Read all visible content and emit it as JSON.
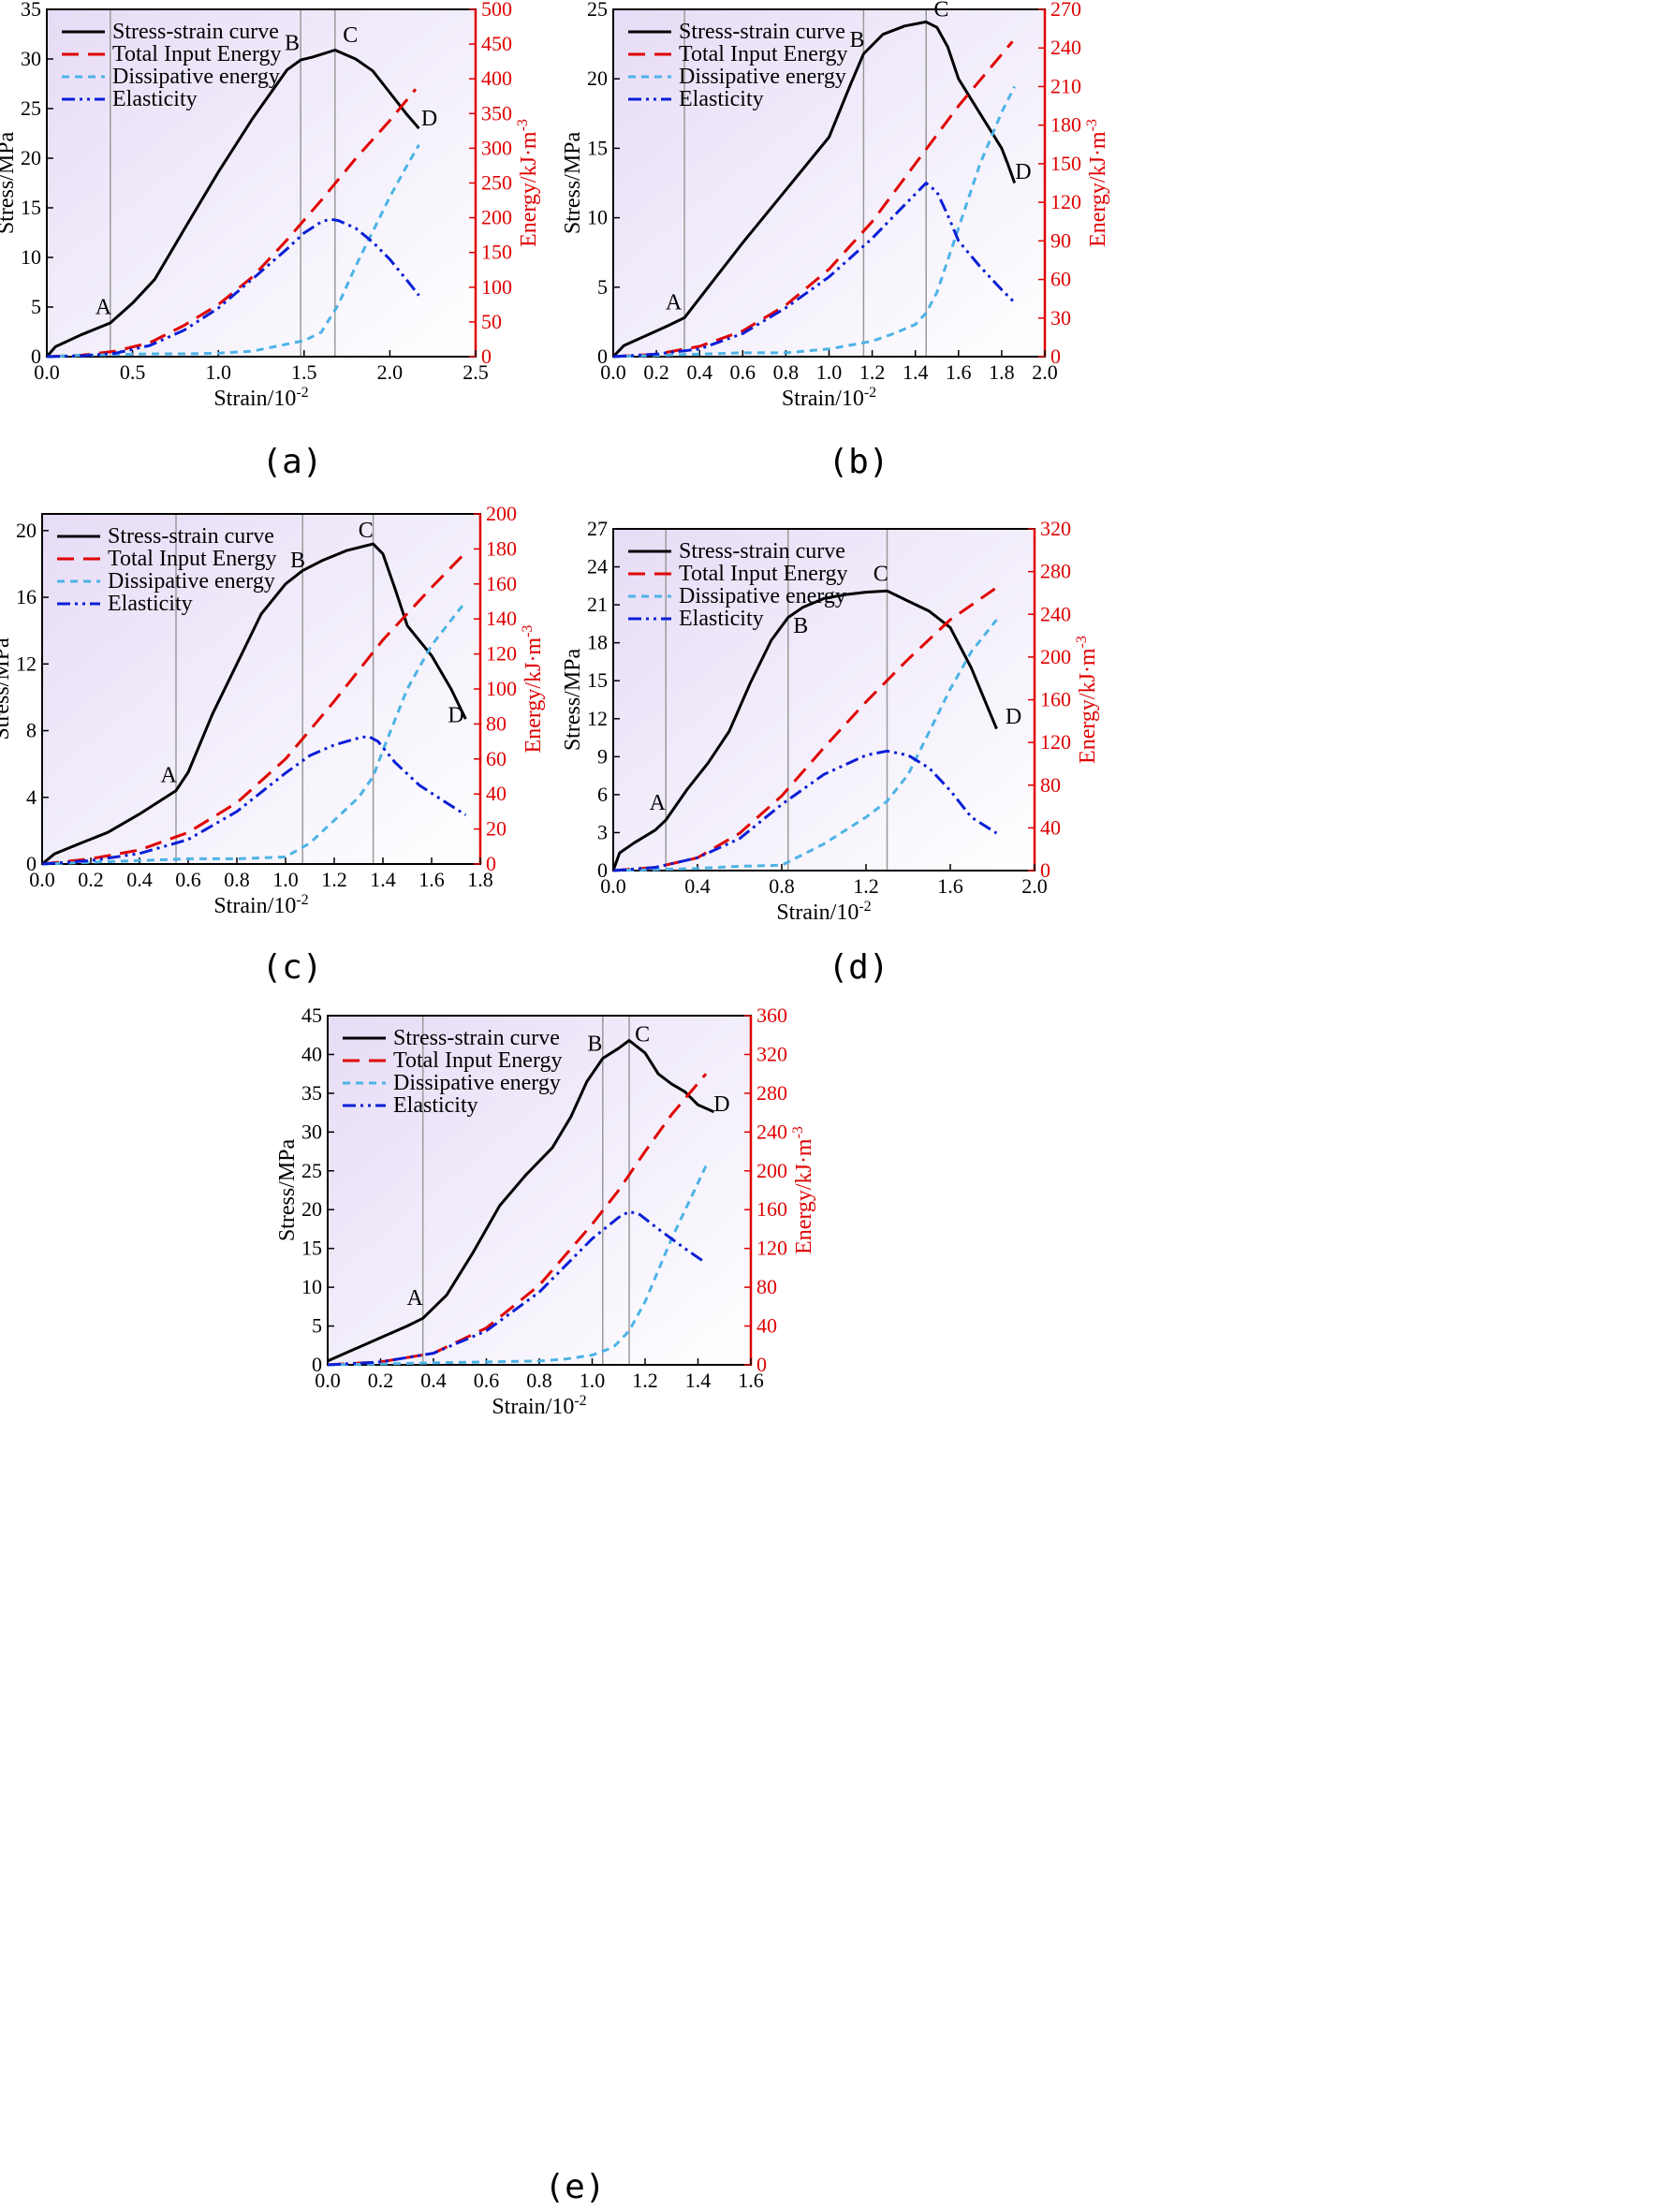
{
  "colors": {
    "stress": "#000000",
    "total": "#e00000",
    "dissipative": "#4db3e6",
    "elastic": "#0a1fd6",
    "right_axis": "#e00000",
    "marker_line": "#9a9a9a",
    "bg_top_left": "#e6dcf6",
    "bg_bottom_right": "#ffffff"
  },
  "legend_labels": [
    "Stress-strain curve",
    "Total Input Energy",
    "Dissipative energy",
    "Elasticity"
  ],
  "xlabel": "Strain/10",
  "xlabel_exp": "-2",
  "ylabel": "Stress/MPa",
  "y2label": "Energy/kJ·m",
  "y2label_exp": "-3",
  "chart_data": [
    {
      "caption": "(a)",
      "type": "line",
      "xlim": [
        0,
        2.5
      ],
      "xticks": [
        "0.0",
        "0.5",
        "1.0",
        "1.5",
        "2.0",
        "2.5"
      ],
      "ylim": [
        0,
        35
      ],
      "yticks": [
        "0",
        "5",
        "10",
        "15",
        "20",
        "25",
        "30",
        "35"
      ],
      "y2lim": [
        0,
        500
      ],
      "y2ticks": [
        "0",
        "50",
        "100",
        "150",
        "200",
        "250",
        "300",
        "350",
        "400",
        "450",
        "500"
      ],
      "vlines": [
        0.37,
        1.48,
        1.68
      ],
      "points": [
        {
          "label": "A",
          "x": 0.33,
          "y": 4.3
        },
        {
          "label": "B",
          "x": 1.43,
          "y": 30.9
        },
        {
          "label": "C",
          "x": 1.77,
          "y": 31.7
        },
        {
          "label": "D",
          "x": 2.23,
          "y": 23.3
        }
      ],
      "series": [
        {
          "name": "Stress-strain curve",
          "axis": "left",
          "x": [
            0,
            0.05,
            0.2,
            0.37,
            0.5,
            0.63,
            0.8,
            1.0,
            1.2,
            1.4,
            1.48,
            1.55,
            1.68,
            1.8,
            1.9,
            2.0,
            2.1,
            2.17
          ],
          "y": [
            0,
            1.0,
            2.2,
            3.4,
            5.4,
            7.8,
            12.8,
            18.6,
            24.0,
            28.9,
            29.9,
            30.2,
            30.9,
            30.0,
            28.8,
            26.6,
            24.4,
            23.0
          ]
        },
        {
          "name": "Total Input Energy",
          "axis": "right",
          "x": [
            0,
            0.2,
            0.4,
            0.6,
            0.8,
            1.0,
            1.2,
            1.4,
            1.6,
            1.8,
            2.0,
            2.15
          ],
          "y": [
            0,
            2,
            8,
            20,
            45,
            75,
            115,
            168,
            225,
            285,
            340,
            385
          ]
        },
        {
          "name": "Dissipative energy",
          "axis": "right",
          "x": [
            0,
            0.2,
            0.4,
            0.6,
            0.8,
            1.0,
            1.2,
            1.4,
            1.5,
            1.6,
            1.7,
            1.8,
            1.9,
            2.0,
            2.1,
            2.17
          ],
          "y": [
            0,
            2,
            3,
            4,
            4,
            5,
            8,
            18,
            23,
            35,
            75,
            130,
            180,
            230,
            275,
            305
          ]
        },
        {
          "name": "Elasticity",
          "axis": "right",
          "x": [
            0,
            0.2,
            0.4,
            0.6,
            0.8,
            1.0,
            1.2,
            1.4,
            1.5,
            1.6,
            1.65,
            1.7,
            1.8,
            1.9,
            2.0,
            2.1,
            2.17
          ],
          "y": [
            0,
            1,
            5,
            16,
            38,
            70,
            112,
            155,
            178,
            194,
            198,
            196,
            185,
            165,
            140,
            110,
            88
          ]
        }
      ]
    },
    {
      "caption": "(b)",
      "type": "line",
      "xlim": [
        0,
        2.0
      ],
      "xticks": [
        "0.0",
        "0.2",
        "0.4",
        "0.6",
        "0.8",
        "1.0",
        "1.2",
        "1.4",
        "1.6",
        "1.8",
        "2.0"
      ],
      "ylim": [
        0,
        25
      ],
      "yticks": [
        "0",
        "5",
        "10",
        "15",
        "20",
        "25"
      ],
      "y2lim": [
        0,
        270
      ],
      "y2ticks": [
        "0",
        "30",
        "60",
        "90",
        "120",
        "150",
        "180",
        "210",
        "240",
        "270"
      ],
      "vlines": [
        0.33,
        1.16,
        1.45
      ],
      "points": [
        {
          "label": "A",
          "x": 0.28,
          "y": 3.4
        },
        {
          "label": "B",
          "x": 1.13,
          "y": 22.3
        },
        {
          "label": "C",
          "x": 1.52,
          "y": 24.5
        },
        {
          "label": "D",
          "x": 1.9,
          "y": 12.8
        }
      ],
      "series": [
        {
          "name": "Stress-strain curve",
          "axis": "left",
          "x": [
            0,
            0.05,
            0.15,
            0.25,
            0.33,
            0.45,
            0.6,
            0.8,
            1.0,
            1.1,
            1.16,
            1.25,
            1.35,
            1.45,
            1.5,
            1.55,
            1.6,
            1.7,
            1.8,
            1.83,
            1.86
          ],
          "y": [
            0,
            0.8,
            1.5,
            2.2,
            2.8,
            5.2,
            8.2,
            12.0,
            15.8,
            19.6,
            21.8,
            23.2,
            23.8,
            24.1,
            23.7,
            22.3,
            20.0,
            17.5,
            15.0,
            13.8,
            12.5
          ]
        },
        {
          "name": "Total Input Energy",
          "axis": "right",
          "x": [
            0,
            0.2,
            0.4,
            0.6,
            0.8,
            1.0,
            1.2,
            1.4,
            1.6,
            1.85
          ],
          "y": [
            0,
            2,
            8,
            20,
            40,
            68,
            105,
            150,
            195,
            245
          ]
        },
        {
          "name": "Dissipative energy",
          "axis": "right",
          "x": [
            0,
            0.2,
            0.4,
            0.6,
            0.8,
            1.0,
            1.2,
            1.3,
            1.4,
            1.45,
            1.5,
            1.6,
            1.7,
            1.8,
            1.86
          ],
          "y": [
            0,
            1,
            2,
            3,
            3,
            6,
            12,
            18,
            25,
            34,
            50,
            100,
            150,
            190,
            210
          ]
        },
        {
          "name": "Elasticity",
          "axis": "right",
          "x": [
            0,
            0.2,
            0.4,
            0.6,
            0.8,
            1.0,
            1.2,
            1.35,
            1.45,
            1.5,
            1.55,
            1.6,
            1.7,
            1.8,
            1.86
          ],
          "y": [
            0,
            2,
            6,
            18,
            38,
            62,
            92,
            118,
            135,
            128,
            110,
            90,
            70,
            52,
            42
          ]
        }
      ]
    },
    {
      "caption": "(c)",
      "type": "line",
      "xlim": [
        0,
        1.8
      ],
      "xticks": [
        "0.0",
        "0.2",
        "0.4",
        "0.6",
        "0.8",
        "1.0",
        "1.2",
        "1.4",
        "1.6",
        "1.8"
      ],
      "ylim": [
        0,
        21
      ],
      "yticks": [
        "0",
        "4",
        "8",
        "12",
        "16",
        "20"
      ],
      "y2lim": [
        0,
        200
      ],
      "y2ticks": [
        "0",
        "20",
        "40",
        "60",
        "80",
        "100",
        "120",
        "140",
        "160",
        "180",
        "200"
      ],
      "vlines": [
        0.55,
        1.07,
        1.36
      ],
      "points": [
        {
          "label": "A",
          "x": 0.52,
          "y": 4.9
        },
        {
          "label": "B",
          "x": 1.05,
          "y": 17.8
        },
        {
          "label": "C",
          "x": 1.33,
          "y": 19.6
        },
        {
          "label": "D",
          "x": 1.7,
          "y": 8.5
        }
      ],
      "series": [
        {
          "name": "Stress-strain curve",
          "axis": "left",
          "x": [
            0,
            0.05,
            0.15,
            0.27,
            0.4,
            0.55,
            0.6,
            0.7,
            0.8,
            0.9,
            1.0,
            1.07,
            1.15,
            1.25,
            1.36,
            1.4,
            1.45,
            1.5,
            1.6,
            1.68,
            1.74
          ],
          "y": [
            0,
            0.6,
            1.2,
            1.9,
            3.0,
            4.4,
            5.5,
            9.0,
            12.0,
            15.0,
            16.8,
            17.6,
            18.2,
            18.8,
            19.2,
            18.6,
            16.5,
            14.3,
            12.5,
            10.5,
            8.7
          ]
        },
        {
          "name": "Total Input Energy",
          "axis": "right",
          "x": [
            0,
            0.2,
            0.4,
            0.6,
            0.8,
            1.0,
            1.2,
            1.4,
            1.6,
            1.74
          ],
          "y": [
            0,
            3,
            8,
            18,
            35,
            60,
            93,
            128,
            158,
            178
          ]
        },
        {
          "name": "Dissipative energy",
          "axis": "right",
          "x": [
            0,
            0.2,
            0.4,
            0.6,
            0.8,
            1.0,
            1.1,
            1.2,
            1.3,
            1.36,
            1.4,
            1.5,
            1.6,
            1.74
          ],
          "y": [
            0,
            1,
            2,
            3,
            3,
            4,
            12,
            25,
            38,
            50,
            65,
            100,
            125,
            150
          ]
        },
        {
          "name": "Elasticity",
          "axis": "right",
          "x": [
            0,
            0.2,
            0.4,
            0.6,
            0.8,
            1.0,
            1.1,
            1.2,
            1.3,
            1.34,
            1.38,
            1.45,
            1.55,
            1.65,
            1.74
          ],
          "y": [
            0,
            2,
            6,
            14,
            30,
            52,
            62,
            68,
            72,
            73,
            70,
            58,
            45,
            36,
            28
          ]
        }
      ]
    },
    {
      "caption": "(d)",
      "type": "line",
      "xlim": [
        0,
        2.0
      ],
      "xticks": [
        "0.0",
        "0.4",
        "0.8",
        "1.2",
        "1.6",
        "2.0"
      ],
      "ylim": [
        0,
        27
      ],
      "yticks": [
        "0",
        "3",
        "6",
        "9",
        "12",
        "15",
        "18",
        "21",
        "24",
        "27"
      ],
      "y2lim": [
        0,
        320
      ],
      "y2ticks": [
        "0",
        "40",
        "80",
        "120",
        "160",
        "200",
        "240",
        "280",
        "320"
      ],
      "vlines": [
        0.25,
        0.83,
        1.3
      ],
      "points": [
        {
          "label": "A",
          "x": 0.21,
          "y": 4.8
        },
        {
          "label": "B",
          "x": 0.89,
          "y": 18.8
        },
        {
          "label": "C",
          "x": 1.27,
          "y": 22.9
        },
        {
          "label": "D",
          "x": 1.9,
          "y": 11.6
        }
      ],
      "series": [
        {
          "name": "Stress-strain curve",
          "axis": "left",
          "x": [
            0,
            0.03,
            0.1,
            0.2,
            0.25,
            0.35,
            0.45,
            0.55,
            0.65,
            0.75,
            0.83,
            0.9,
            1.0,
            1.1,
            1.2,
            1.3,
            1.4,
            1.5,
            1.6,
            1.7,
            1.82
          ],
          "y": [
            0,
            1.4,
            2.2,
            3.2,
            4.0,
            6.4,
            8.5,
            11.0,
            14.8,
            18.2,
            20.0,
            20.8,
            21.5,
            21.8,
            22.0,
            22.1,
            21.3,
            20.5,
            19.2,
            16.0,
            11.2
          ]
        },
        {
          "name": "Total Input Energy",
          "axis": "right",
          "x": [
            0,
            0.2,
            0.4,
            0.6,
            0.8,
            1.0,
            1.2,
            1.4,
            1.6,
            1.82
          ],
          "y": [
            0,
            3,
            12,
            35,
            70,
            115,
            158,
            198,
            235,
            265
          ]
        },
        {
          "name": "Dissipative energy",
          "axis": "right",
          "x": [
            0,
            0.2,
            0.4,
            0.6,
            0.8,
            0.85,
            1.0,
            1.2,
            1.3,
            1.4,
            1.5,
            1.6,
            1.7,
            1.82
          ],
          "y": [
            0,
            1,
            2,
            4,
            5,
            10,
            25,
            50,
            65,
            90,
            130,
            170,
            205,
            235
          ]
        },
        {
          "name": "Elasticity",
          "axis": "right",
          "x": [
            0,
            0.2,
            0.4,
            0.6,
            0.8,
            1.0,
            1.2,
            1.3,
            1.4,
            1.5,
            1.6,
            1.7,
            1.82
          ],
          "y": [
            0,
            3,
            12,
            30,
            62,
            90,
            108,
            112,
            108,
            96,
            75,
            50,
            35
          ]
        }
      ]
    },
    {
      "caption": "(e)",
      "type": "line",
      "xlim": [
        0,
        1.6
      ],
      "xticks": [
        "0.0",
        "0.2",
        "0.4",
        "0.6",
        "0.8",
        "1.0",
        "1.2",
        "1.4",
        "1.6"
      ],
      "ylim": [
        0,
        45
      ],
      "yticks": [
        "0",
        "5",
        "10",
        "15",
        "20",
        "25",
        "30",
        "35",
        "40",
        "45"
      ],
      "y2lim": [
        0,
        360
      ],
      "y2ticks": [
        "0",
        "40",
        "80",
        "120",
        "160",
        "200",
        "240",
        "280",
        "320",
        "360"
      ],
      "vlines": [
        0.36,
        1.04,
        1.14
      ],
      "points": [
        {
          "label": "A",
          "x": 0.33,
          "y": 7.7
        },
        {
          "label": "B",
          "x": 1.01,
          "y": 40.5
        },
        {
          "label": "C",
          "x": 1.19,
          "y": 41.7
        },
        {
          "label": "D",
          "x": 1.49,
          "y": 32.7
        }
      ],
      "series": [
        {
          "name": "Stress-strain curve",
          "axis": "left",
          "x": [
            0,
            0.1,
            0.2,
            0.3,
            0.36,
            0.45,
            0.55,
            0.65,
            0.75,
            0.85,
            0.92,
            0.98,
            1.04,
            1.1,
            1.14,
            1.2,
            1.25,
            1.3,
            1.35,
            1.4,
            1.46
          ],
          "y": [
            0.5,
            2.0,
            3.5,
            5.0,
            6.0,
            9.0,
            14.5,
            20.5,
            24.5,
            28.0,
            32.0,
            36.5,
            39.5,
            40.8,
            41.8,
            40.2,
            37.5,
            36.2,
            35.2,
            33.5,
            32.6
          ]
        },
        {
          "name": "Total Input Energy",
          "axis": "right",
          "x": [
            0,
            0.2,
            0.4,
            0.6,
            0.8,
            1.0,
            1.1,
            1.2,
            1.3,
            1.43
          ],
          "y": [
            0,
            3,
            12,
            38,
            82,
            145,
            180,
            220,
            258,
            300
          ]
        },
        {
          "name": "Dissipative energy",
          "axis": "right",
          "x": [
            0,
            0.2,
            0.4,
            0.6,
            0.8,
            0.9,
            1.0,
            1.08,
            1.14,
            1.2,
            1.3,
            1.43
          ],
          "y": [
            0,
            1,
            2,
            3,
            4,
            6,
            10,
            18,
            35,
            65,
            130,
            205
          ]
        },
        {
          "name": "Elasticity",
          "axis": "right",
          "x": [
            0,
            0.2,
            0.4,
            0.6,
            0.8,
            1.0,
            1.1,
            1.14,
            1.18,
            1.25,
            1.35,
            1.43
          ],
          "y": [
            0,
            3,
            12,
            35,
            75,
            130,
            152,
            158,
            155,
            140,
            120,
            105
          ]
        }
      ]
    }
  ]
}
